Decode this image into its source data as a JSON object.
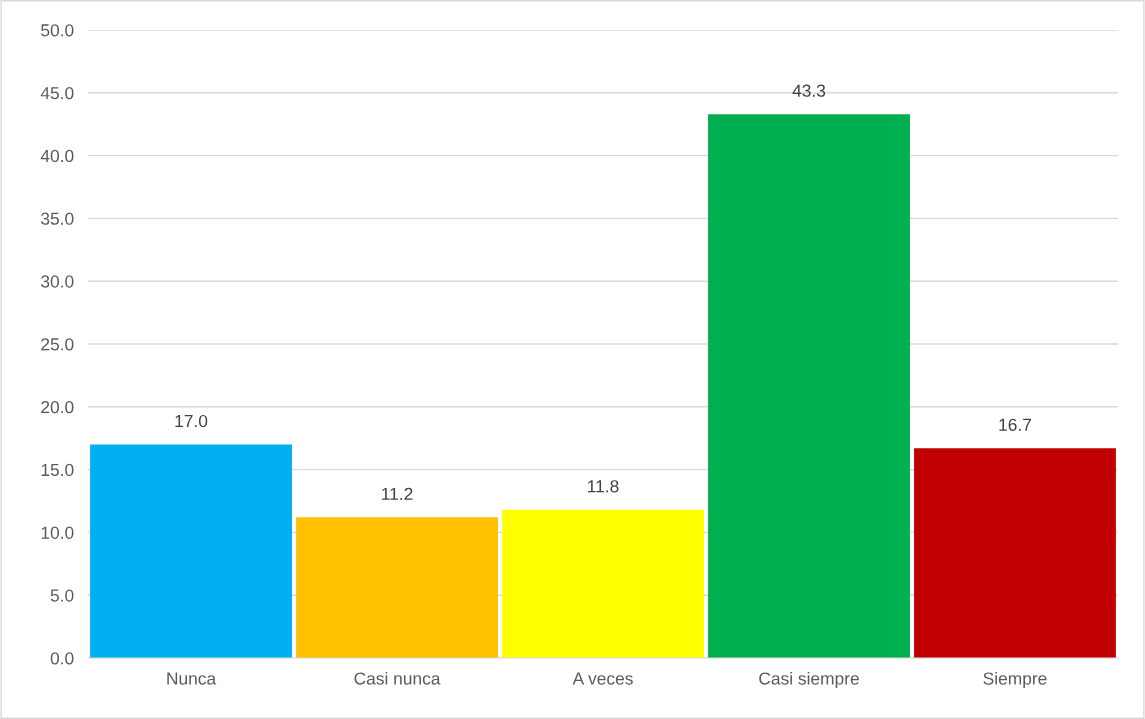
{
  "chart_data": {
    "type": "bar",
    "categories": [
      "Nunca",
      "Casi nunca",
      "A veces",
      "Casi siempre",
      "Siempre"
    ],
    "values": [
      17.0,
      11.2,
      11.8,
      43.3,
      16.7
    ],
    "colors": [
      "#00b0f0",
      "#ffc000",
      "#ffff00",
      "#00b050",
      "#c00000"
    ],
    "value_labels": [
      "17.0",
      "11.2",
      "11.8",
      "43.3",
      "16.7"
    ],
    "ylim": [
      0,
      50
    ],
    "yticks": [
      {
        "value": 0,
        "label": "0.0"
      },
      {
        "value": 5,
        "label": "5.0"
      },
      {
        "value": 10,
        "label": "10.0"
      },
      {
        "value": 15,
        "label": "15.0"
      },
      {
        "value": 20,
        "label": "20.0"
      },
      {
        "value": 25,
        "label": "25.0"
      },
      {
        "value": 30,
        "label": "30.0"
      },
      {
        "value": 35,
        "label": "35.0"
      },
      {
        "value": 40,
        "label": "40.0"
      },
      {
        "value": 45,
        "label": "45.0"
      },
      {
        "value": 50,
        "label": "50.0"
      }
    ],
    "grid": "y",
    "legend": false
  }
}
